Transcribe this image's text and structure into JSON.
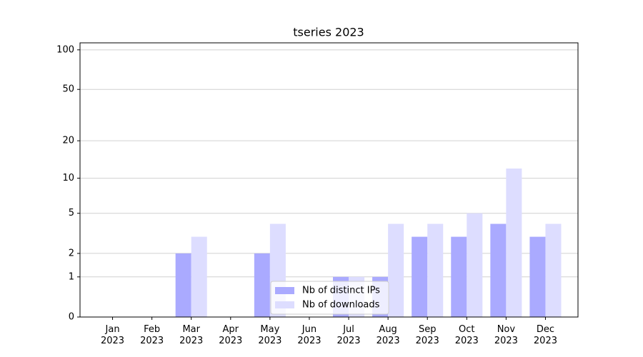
{
  "chart_data": {
    "type": "bar",
    "title": "tseries 2023",
    "categories": [
      "Jan\n2023",
      "Feb\n2023",
      "Mar\n2023",
      "Apr\n2023",
      "May\n2023",
      "Jun\n2023",
      "Jul\n2023",
      "Aug\n2023",
      "Sep\n2023",
      "Oct\n2023",
      "Nov\n2023",
      "Dec\n2023"
    ],
    "series": [
      {
        "name": "Nb of distinct IPs",
        "color": "#aaaaff",
        "values": [
          0,
          0,
          2,
          0,
          2,
          0,
          1,
          1,
          3,
          3,
          4,
          3
        ]
      },
      {
        "name": "Nb of downloads",
        "color": "#ddddff",
        "values": [
          0,
          0,
          3,
          0,
          4,
          0,
          1,
          4,
          4,
          5,
          12,
          4
        ]
      }
    ],
    "yscale": "log1p",
    "ylim": [
      0,
      113
    ],
    "yticks": [
      0,
      1,
      2,
      5,
      10,
      20,
      50,
      100
    ],
    "grid": true,
    "legend": "lower center"
  }
}
